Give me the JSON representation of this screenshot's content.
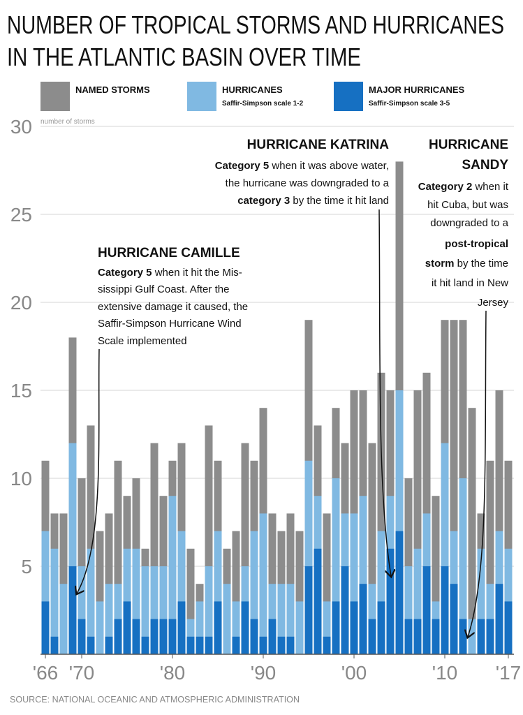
{
  "chart_data": {
    "type": "bar",
    "title": [
      "NUMBER OF TROPICAL STORMS AND HURRICANES",
      "IN THE ATLANTIC BASIN OVER TIME"
    ],
    "y_label": "number of storms",
    "source": "SOURCE: NATIONAL OCEANIC AND ATMOSPHERIC ADMINISTRATION",
    "categories": [
      "'66",
      null,
      null,
      null,
      "'70",
      null,
      null,
      null,
      null,
      null,
      null,
      null,
      null,
      null,
      "'80",
      null,
      null,
      null,
      null,
      null,
      null,
      null,
      null,
      null,
      "'90",
      null,
      null,
      null,
      null,
      null,
      null,
      null,
      null,
      null,
      "'00",
      null,
      null,
      null,
      null,
      null,
      null,
      null,
      null,
      null,
      "'10",
      null,
      null,
      null,
      null,
      null,
      null,
      "'17"
    ],
    "series": [
      {
        "name": "NAMED STORMS",
        "color": "#8c8c8c",
        "values": [
          11,
          8,
          8,
          18,
          10,
          13,
          7,
          8,
          11,
          9,
          10,
          6,
          12,
          9,
          11,
          12,
          6,
          4,
          13,
          11,
          6,
          7,
          12,
          11,
          14,
          8,
          7,
          8,
          7,
          19,
          13,
          8,
          14,
          12,
          15,
          15,
          12,
          16,
          15,
          28,
          10,
          15,
          16,
          9,
          19,
          19,
          19,
          14,
          8,
          11,
          15,
          11
        ]
      },
      {
        "name": "HURRICANES",
        "description": "Saffir-Simpson scale 1-2",
        "color": "#80b9e2",
        "values": [
          7,
          6,
          4,
          12,
          5,
          6,
          3,
          4,
          4,
          6,
          6,
          5,
          5,
          5,
          9,
          7,
          2,
          3,
          5,
          7,
          4,
          3,
          5,
          7,
          8,
          4,
          4,
          4,
          3,
          11,
          9,
          3,
          10,
          8,
          8,
          9,
          4,
          7,
          9,
          15,
          5,
          6,
          8,
          3,
          12,
          7,
          10,
          2,
          6,
          4,
          7,
          6
        ]
      },
      {
        "name": "MAJOR HURRICANES",
        "description": "Saffir-Simpson scale 3-5",
        "color": "#1670c2",
        "values": [
          3,
          1,
          0,
          5,
          2,
          1,
          0,
          1,
          2,
          3,
          2,
          1,
          2,
          2,
          2,
          3,
          1,
          1,
          1,
          3,
          0,
          1,
          3,
          2,
          1,
          2,
          1,
          1,
          0,
          5,
          6,
          1,
          3,
          5,
          3,
          4,
          2,
          3,
          6,
          7,
          2,
          2,
          5,
          2,
          5,
          4,
          2,
          0,
          2,
          2,
          4,
          3
        ]
      }
    ],
    "ylim": [
      0,
      30
    ],
    "yticks": [
      5,
      10,
      15,
      20,
      25,
      30
    ],
    "grid": true,
    "annotations": [
      {
        "title": [
          "HURRICANE CAMILLE"
        ],
        "lines": [
          [
            {
              "text": "Category 5",
              "bold": true
            },
            {
              "text": " when it hit the Mis-"
            }
          ],
          [
            {
              "text": "sissippi Gulf Coast. After the"
            }
          ],
          [
            {
              "text": "extensive damage it caused, the"
            }
          ],
          [
            {
              "text": "Saffir-Simpson Hurricane Wind"
            }
          ],
          [
            {
              "text": "Scale implemented"
            }
          ]
        ]
      },
      {
        "title": [
          "HURRICANE KATRINA"
        ],
        "lines": [
          [
            {
              "text": "Category 5",
              "bold": true
            },
            {
              "text": " when it was above water,"
            }
          ],
          [
            {
              "text": "the hurricane was downgraded to a"
            }
          ],
          [
            {
              "text": "category 3",
              "bold": true
            },
            {
              "text": " by the time it hit land"
            }
          ]
        ]
      },
      {
        "title": [
          "HURRICANE",
          "SANDY"
        ],
        "lines": [
          [
            {
              "text": "Category 2",
              "bold": true
            },
            {
              "text": " when it"
            }
          ],
          [
            {
              "text": "hit Cuba, but was"
            }
          ],
          [
            {
              "text": "downgraded to a"
            }
          ],
          [
            {
              "text": "post-tropical",
              "bold": true
            }
          ],
          [
            {
              "text": "storm",
              "bold": true
            },
            {
              "text": " by the time"
            }
          ],
          [
            {
              "text": "it hit land in New"
            }
          ],
          [
            {
              "text": "Jersey"
            }
          ]
        ]
      }
    ]
  }
}
